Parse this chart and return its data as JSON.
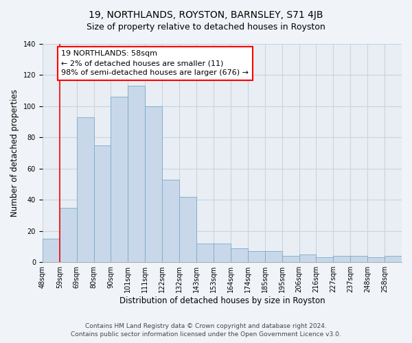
{
  "title": "19, NORTHLANDS, ROYSTON, BARNSLEY, S71 4JB",
  "subtitle": "Size of property relative to detached houses in Royston",
  "xlabel": "Distribution of detached houses by size in Royston",
  "ylabel": "Number of detached properties",
  "footer_line1": "Contains HM Land Registry data © Crown copyright and database right 2024.",
  "footer_line2": "Contains public sector information licensed under the Open Government Licence v3.0.",
  "bin_labels": [
    "48sqm",
    "59sqm",
    "69sqm",
    "80sqm",
    "90sqm",
    "101sqm",
    "111sqm",
    "122sqm",
    "132sqm",
    "143sqm",
    "153sqm",
    "164sqm",
    "174sqm",
    "185sqm",
    "195sqm",
    "206sqm",
    "216sqm",
    "227sqm",
    "237sqm",
    "248sqm",
    "258sqm"
  ],
  "bar_heights": [
    15,
    35,
    93,
    75,
    106,
    113,
    100,
    53,
    42,
    12,
    12,
    9,
    7,
    7,
    4,
    5,
    3,
    4,
    4,
    3,
    4
  ],
  "bar_color": "#c8d8ea",
  "bar_edge_color": "#7aaac8",
  "annotation_text": "19 NORTHLANDS: 58sqm\n← 2% of detached houses are smaller (11)\n98% of semi-detached houses are larger (676) →",
  "annotation_box_color": "white",
  "annotation_box_edge_color": "red",
  "vline_x": 1,
  "vline_color": "red",
  "ylim": [
    0,
    140
  ],
  "yticks": [
    0,
    20,
    40,
    60,
    80,
    100,
    120,
    140
  ],
  "grid_color": "#c8d4e0",
  "background_color": "#f0f4f8",
  "plot_bg_color": "#e8eef4",
  "title_fontsize": 10,
  "subtitle_fontsize": 9,
  "xlabel_fontsize": 8.5,
  "ylabel_fontsize": 8.5,
  "tick_fontsize": 7,
  "annotation_fontsize": 8,
  "footer_fontsize": 6.5
}
